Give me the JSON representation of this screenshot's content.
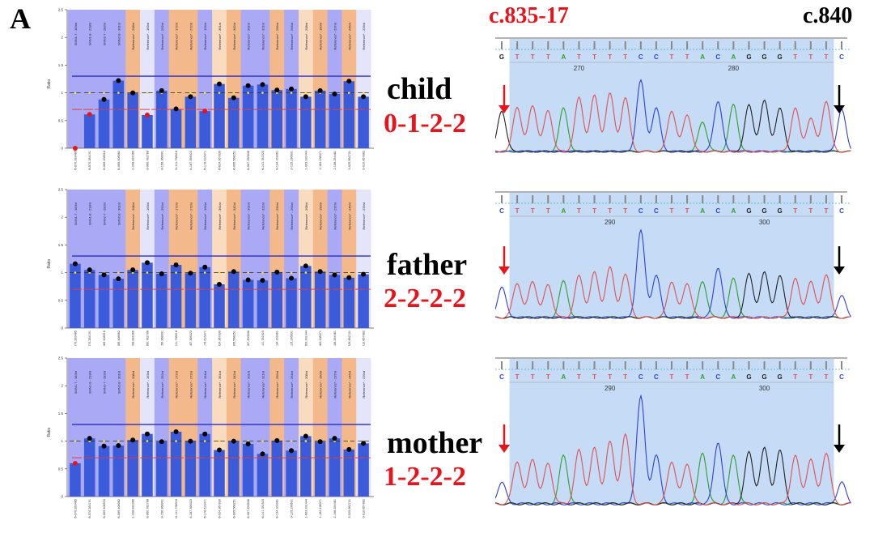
{
  "panel_label": "A",
  "positions": {
    "left": "c.835-17",
    "right": "c.840"
  },
  "samples": [
    {
      "name": "child",
      "genotype": "0-1-2-2"
    },
    {
      "name": "father",
      "genotype": "2-2-2-2"
    },
    {
      "name": "mother",
      "genotype": "1-2-2-2"
    }
  ],
  "colors": {
    "bar": "#3b5bdb",
    "smn_bg": "#a9a9f5",
    "ref_orange": "#f4b98a",
    "ref_pale_orange": "#f9dcc0",
    "ref_blue": "#a9a9f5",
    "ref_lavender": "#e4e4fb",
    "upper_line": "#2b2bd0",
    "lower_line": "#e04040",
    "A": "#2ca02c",
    "C": "#2f3fd8",
    "G": "#222222",
    "T": "#e05050",
    "arrow_left": "#e8141c",
    "arrow_right": "#000000"
  },
  "chart_data": [
    {
      "type": "bar",
      "sample": "child",
      "ylabel": "Ratio",
      "ylim": [
        0,
        2.5
      ],
      "yticks": [
        "0",
        "0.5",
        "1",
        "1.5",
        "2",
        "2.5"
      ],
      "thresholds": {
        "upper": 1.3,
        "lower": 0.7
      },
      "probes": [
        "SMN1-7 - 183nt",
        "SMN1-8 - 218nt",
        "SMN2-7 - 282nt",
        "SMN2-8 - 301nt",
        "Reference* - 208nt",
        "Reference* - 163nt",
        "Reference* - 292nt",
        "Reference* - 172nt",
        "Reference* - 272nt",
        "Reference* - 154nt",
        "Reference* - 361nt",
        "Reference* - 342nt",
        "Reference* - 301nt",
        "Reference* - 321nt",
        "Reference* - 256nt",
        "Reference* - 264nt",
        "Reference* - 208nt",
        "Reference* - 190nt",
        "Reference* - 237nt",
        "Reference* - 245nt",
        "Reference* - 229nt"
      ],
      "probe_bg": [
        "smn",
        "smn",
        "smn",
        "smn",
        "ref_orange",
        "ref_lavender",
        "ref_blue",
        "ref_orange",
        "ref_orange",
        "ref_blue",
        "ref_pale_orange",
        "ref_orange",
        "ref_blue",
        "ref_blue",
        "ref_orange",
        "ref_blue",
        "ref_pale_orange",
        "ref_orange",
        "ref_blue",
        "ref_orange",
        "ref_lavender"
      ],
      "categories": [
        "05-070.283485",
        "05-070.284191",
        "05-069.408916",
        "05-069.408982",
        "01-208.832366",
        "03-060.782768",
        "03-156.368991",
        "04-111.758918",
        "04-187.398323",
        "05-176.616471",
        "06-024.367830",
        "06-005.568251",
        "06-067.450636",
        "06-141.781923",
        "09-134.163361",
        "10-125.236631",
        "11-003.331444",
        "11-184.438371",
        "12-108.254481",
        "15-025.962731",
        "20-010.857882"
      ],
      "values": [
        0.0,
        0.61,
        0.88,
        1.22,
        1.0,
        0.6,
        1.04,
        0.71,
        0.93,
        0.67,
        1.16,
        0.91,
        1.13,
        1.15,
        1.05,
        1.07,
        0.93,
        1.04,
        0.98,
        1.21,
        0.93
      ]
    },
    {
      "type": "bar",
      "sample": "father",
      "ylabel": "Ratio",
      "ylim": [
        0,
        2.5
      ],
      "yticks": [
        "0",
        "0.5",
        "1",
        "1.5",
        "2",
        "2.5"
      ],
      "thresholds": {
        "upper": 1.3,
        "lower": 0.7
      },
      "values": [
        1.16,
        1.05,
        0.96,
        0.89,
        1.05,
        1.18,
        0.98,
        1.14,
        0.99,
        1.1,
        0.79,
        1.02,
        0.87,
        0.86,
        1.01,
        0.9,
        1.12,
        1.02,
        0.96,
        0.91,
        0.97
      ]
    },
    {
      "type": "bar",
      "sample": "mother",
      "ylabel": "Ratio",
      "ylim": [
        0,
        2.5
      ],
      "yticks": [
        "0",
        "0.5",
        "1",
        "1.5",
        "2",
        "2.5"
      ],
      "thresholds": {
        "upper": 1.3,
        "lower": 0.7
      },
      "values": [
        0.6,
        1.05,
        0.91,
        0.92,
        1.02,
        1.13,
        0.99,
        1.17,
        1.0,
        1.13,
        0.84,
        1.0,
        0.95,
        0.77,
        1.01,
        0.83,
        1.09,
        0.99,
        1.05,
        0.85,
        0.96
      ]
    }
  ],
  "chromatograms": [
    {
      "sample": "child",
      "sequence": [
        "G",
        "T",
        "T",
        "T",
        "A",
        "T",
        "T",
        "T",
        "T",
        "C",
        "C",
        "T",
        "T",
        "A",
        "C",
        "A",
        "G",
        "G",
        "G",
        "T",
        "T",
        "T",
        "C"
      ],
      "position_labels": [
        {
          "text": "270",
          "base_index": 5
        },
        {
          "text": "280",
          "base_index": 15
        }
      ],
      "peak_heights": [
        0.55,
        0.6,
        0.62,
        0.55,
        0.58,
        0.72,
        0.75,
        0.78,
        0.72,
        0.95,
        0.58,
        0.55,
        0.5,
        0.4,
        0.68,
        0.63,
        0.62,
        0.68,
        0.58,
        0.58,
        0.45,
        0.68,
        0.56
      ]
    },
    {
      "sample": "father",
      "sequence": [
        "C",
        "T",
        "T",
        "T",
        "A",
        "T",
        "T",
        "T",
        "T",
        "C",
        "C",
        "T",
        "T",
        "A",
        "C",
        "A",
        "G",
        "G",
        "G",
        "T",
        "T",
        "T",
        "C"
      ],
      "position_labels": [
        {
          "text": "290",
          "base_index": 7
        },
        {
          "text": "300",
          "base_index": 17
        }
      ],
      "peak_heights": [
        0.35,
        0.4,
        0.42,
        0.38,
        0.42,
        0.48,
        0.52,
        0.58,
        0.5,
        1.0,
        0.48,
        0.42,
        0.4,
        0.42,
        0.58,
        0.45,
        0.5,
        0.52,
        0.48,
        0.45,
        0.42,
        0.5,
        0.25
      ]
    },
    {
      "sample": "mother",
      "sequence": [
        "C",
        "T",
        "T",
        "T",
        "A",
        "T",
        "T",
        "T",
        "T",
        "C",
        "C",
        "T",
        "T",
        "A",
        "C",
        "A",
        "G",
        "G",
        "G",
        "T",
        "T",
        "T",
        "C"
      ],
      "position_labels": [
        {
          "text": "290",
          "base_index": 7
        },
        {
          "text": "300",
          "base_index": 17
        }
      ],
      "peak_heights": [
        0.2,
        0.4,
        0.42,
        0.38,
        0.45,
        0.5,
        0.52,
        0.58,
        0.65,
        1.0,
        0.45,
        0.4,
        0.38,
        0.48,
        0.58,
        0.45,
        0.48,
        0.52,
        0.5,
        0.45,
        0.42,
        0.48,
        0.2
      ]
    }
  ]
}
